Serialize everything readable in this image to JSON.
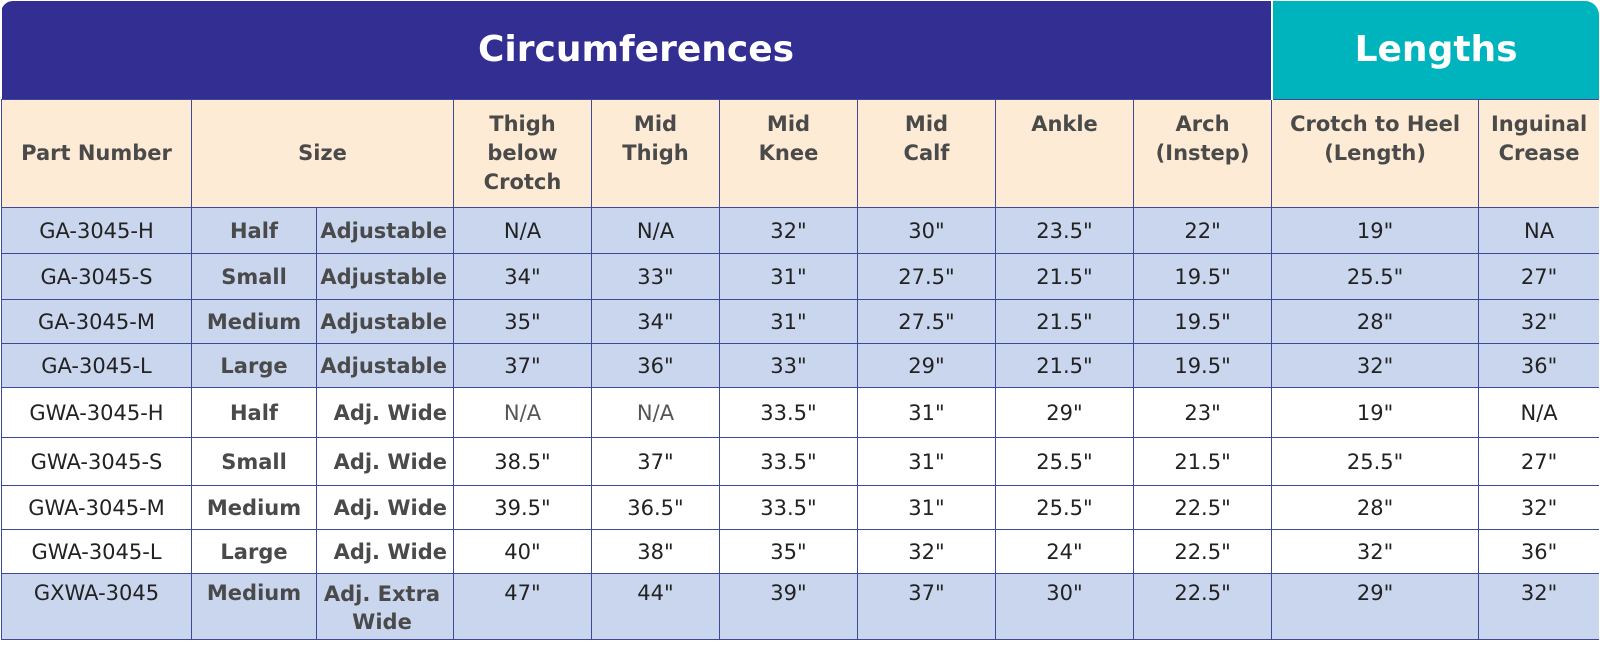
{
  "groups": {
    "circumferences": "Circumferences",
    "lengths": "Lengths"
  },
  "headers": {
    "part_number": "Part Number",
    "size": "Size",
    "thigh_below_crotch": [
      "Thigh",
      "below",
      "Crotch"
    ],
    "mid_thigh": [
      "Mid",
      "Thigh"
    ],
    "mid_knee": [
      "Mid",
      "Knee"
    ],
    "mid_calf": [
      "Mid",
      "Calf"
    ],
    "ankle": [
      "Ankle"
    ],
    "arch": [
      "Arch",
      "(Instep)"
    ],
    "crotch_to_heel": [
      "Crotch to Heel",
      "(Length)"
    ],
    "inguinal_crease": [
      "Inguinal",
      "Crease"
    ]
  },
  "rows": [
    {
      "part": "GA-3045-H",
      "size": "Half",
      "type": "Adjustable",
      "thigh": "N/A",
      "mid_thigh": "N/A",
      "mid_knee": "32\"",
      "mid_calf": "30\"",
      "ankle": "23.5\"",
      "arch": "22\"",
      "crotch_heel": "19\"",
      "inguinal": "NA"
    },
    {
      "part": "GA-3045-S",
      "size": "Small",
      "type": "Adjustable",
      "thigh": "34\"",
      "mid_thigh": "33\"",
      "mid_knee": "31\"",
      "mid_calf": "27.5\"",
      "ankle": "21.5\"",
      "arch": "19.5\"",
      "crotch_heel": "25.5\"",
      "inguinal": "27\""
    },
    {
      "part": "GA-3045-M",
      "size": "Medium",
      "type": "Adjustable",
      "thigh": "35\"",
      "mid_thigh": "34\"",
      "mid_knee": "31\"",
      "mid_calf": "27.5\"",
      "ankle": "21.5\"",
      "arch": "19.5\"",
      "crotch_heel": "28\"",
      "inguinal": "32\""
    },
    {
      "part": "GA-3045-L",
      "size": "Large",
      "type": "Adjustable",
      "thigh": "37\"",
      "mid_thigh": "36\"",
      "mid_knee": "33\"",
      "mid_calf": "29\"",
      "ankle": "21.5\"",
      "arch": "19.5\"",
      "crotch_heel": "32\"",
      "inguinal": "36\""
    },
    {
      "part": "GWA-3045-H",
      "size": "Half",
      "type": "Adj. Wide",
      "thigh": "N/A",
      "mid_thigh": "N/A",
      "mid_knee": "33.5\"",
      "mid_calf": "31\"",
      "ankle": "29\"",
      "arch": "23\"",
      "crotch_heel": "19\"",
      "inguinal": "N/A"
    },
    {
      "part": "GWA-3045-S",
      "size": "Small",
      "type": "Adj. Wide",
      "thigh": "38.5\"",
      "mid_thigh": "37\"",
      "mid_knee": "33.5\"",
      "mid_calf": "31\"",
      "ankle": "25.5\"",
      "arch": "21.5\"",
      "crotch_heel": "25.5\"",
      "inguinal": "27\""
    },
    {
      "part": "GWA-3045-M",
      "size": "Medium",
      "type": "Adj. Wide",
      "thigh": "39.5\"",
      "mid_thigh": "36.5\"",
      "mid_knee": "33.5\"",
      "mid_calf": "31\"",
      "ankle": "25.5\"",
      "arch": "22.5\"",
      "crotch_heel": "28\"",
      "inguinal": "32\""
    },
    {
      "part": "GWA-3045-L",
      "size": "Large",
      "type": "Adj. Wide",
      "thigh": "40\"",
      "mid_thigh": "38\"",
      "mid_knee": "35\"",
      "mid_calf": "32\"",
      "ankle": "24\"",
      "arch": "22.5\"",
      "crotch_heel": "32\"",
      "inguinal": "36\""
    },
    {
      "part": "GXWA-3045",
      "size": "Medium",
      "type": "Adj. Extra Wide",
      "thigh": "47\"",
      "mid_thigh": "44\"",
      "mid_knee": "39\"",
      "mid_calf": "37\"",
      "ankle": "30\"",
      "arch": "22.5\"",
      "crotch_heel": "29\"",
      "inguinal": "32\""
    }
  ],
  "colors": {
    "circumferences_band": "#332e91",
    "lengths_band": "#00b4bd",
    "header_bg": "#fdebd5",
    "row_blue": "#c9d6ee",
    "row_white": "#ffffff",
    "grid": "#3e4a98"
  }
}
